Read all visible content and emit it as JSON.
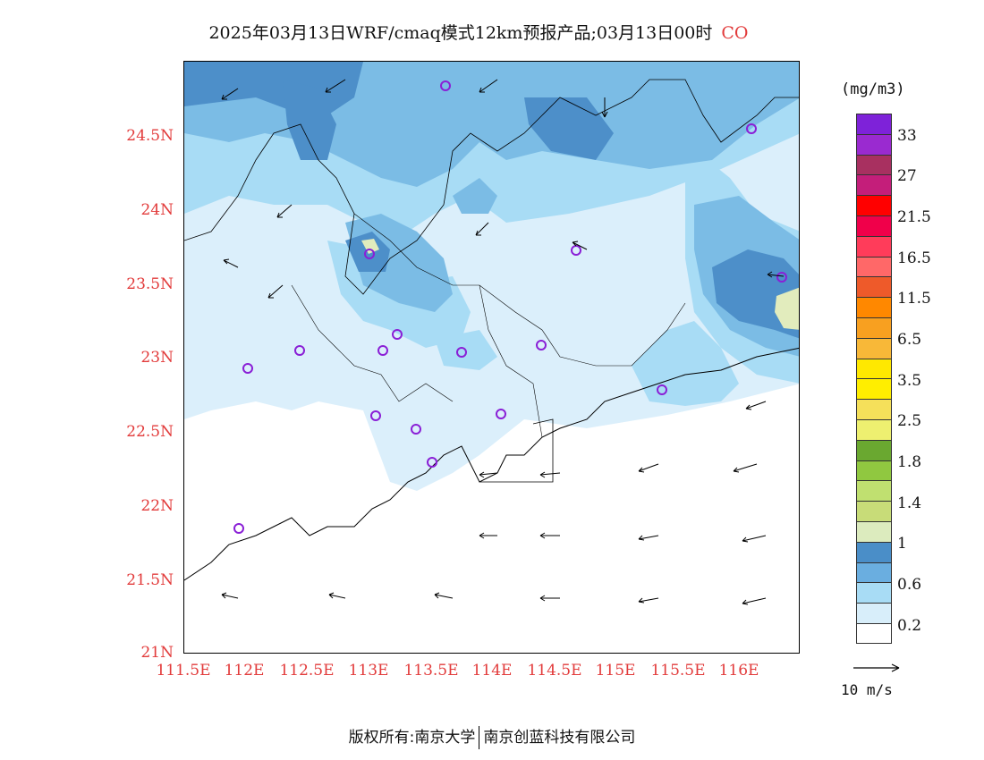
{
  "title": {
    "text": "2025年03月13日WRF/cmaq模式12km预报产品;03月13日00时",
    "species": "CO"
  },
  "map": {
    "lat_labels": [
      "24.5N",
      "24N",
      "23.5N",
      "23N",
      "22.5N",
      "22N",
      "21.5N",
      "21N"
    ],
    "lon_labels": [
      "111.5E",
      "112E",
      "112.5E",
      "113E",
      "113.5E",
      "114E",
      "114.5E",
      "115E",
      "115.5E",
      "116E"
    ],
    "colors": {
      "c0": "#ffffff",
      "c1": "#dbeffb",
      "c2": "#a8dcf5",
      "c3": "#7bbce5",
      "c4": "#4d8fc9",
      "c5": "#e2ecbd"
    }
  },
  "colorbar": {
    "unit": "(mg/m3)",
    "colors_top_to_bottom": [
      "#7e22d9",
      "#9a2ad0",
      "#a83060",
      "#c41e7a",
      "#ff0000",
      "#f0004a",
      "#ff3c5a",
      "#ff6868",
      "#ee5a2a",
      "#ff8800",
      "#f8a020",
      "#f8b838",
      "#ffe800",
      "#ffee00",
      "#f5e05a",
      "#eef070",
      "#6aa830",
      "#90c840",
      "#c0e070",
      "#c8dc78",
      "#dcebbe",
      "#4a8ec8",
      "#6aaee0",
      "#a8dcf5",
      "#d8eefa",
      "#ffffff"
    ],
    "labels": [
      "33",
      "27",
      "21.5",
      "16.5",
      "11.5",
      "6.5",
      "3.5",
      "2.5",
      "1.8",
      "1.4",
      "1",
      "0.6",
      "0.2"
    ]
  },
  "wind_reference": {
    "label": "10 m/s"
  },
  "footer": {
    "left": "版权所有:南京大学",
    "right": "南京创蓝科技有限公司"
  }
}
